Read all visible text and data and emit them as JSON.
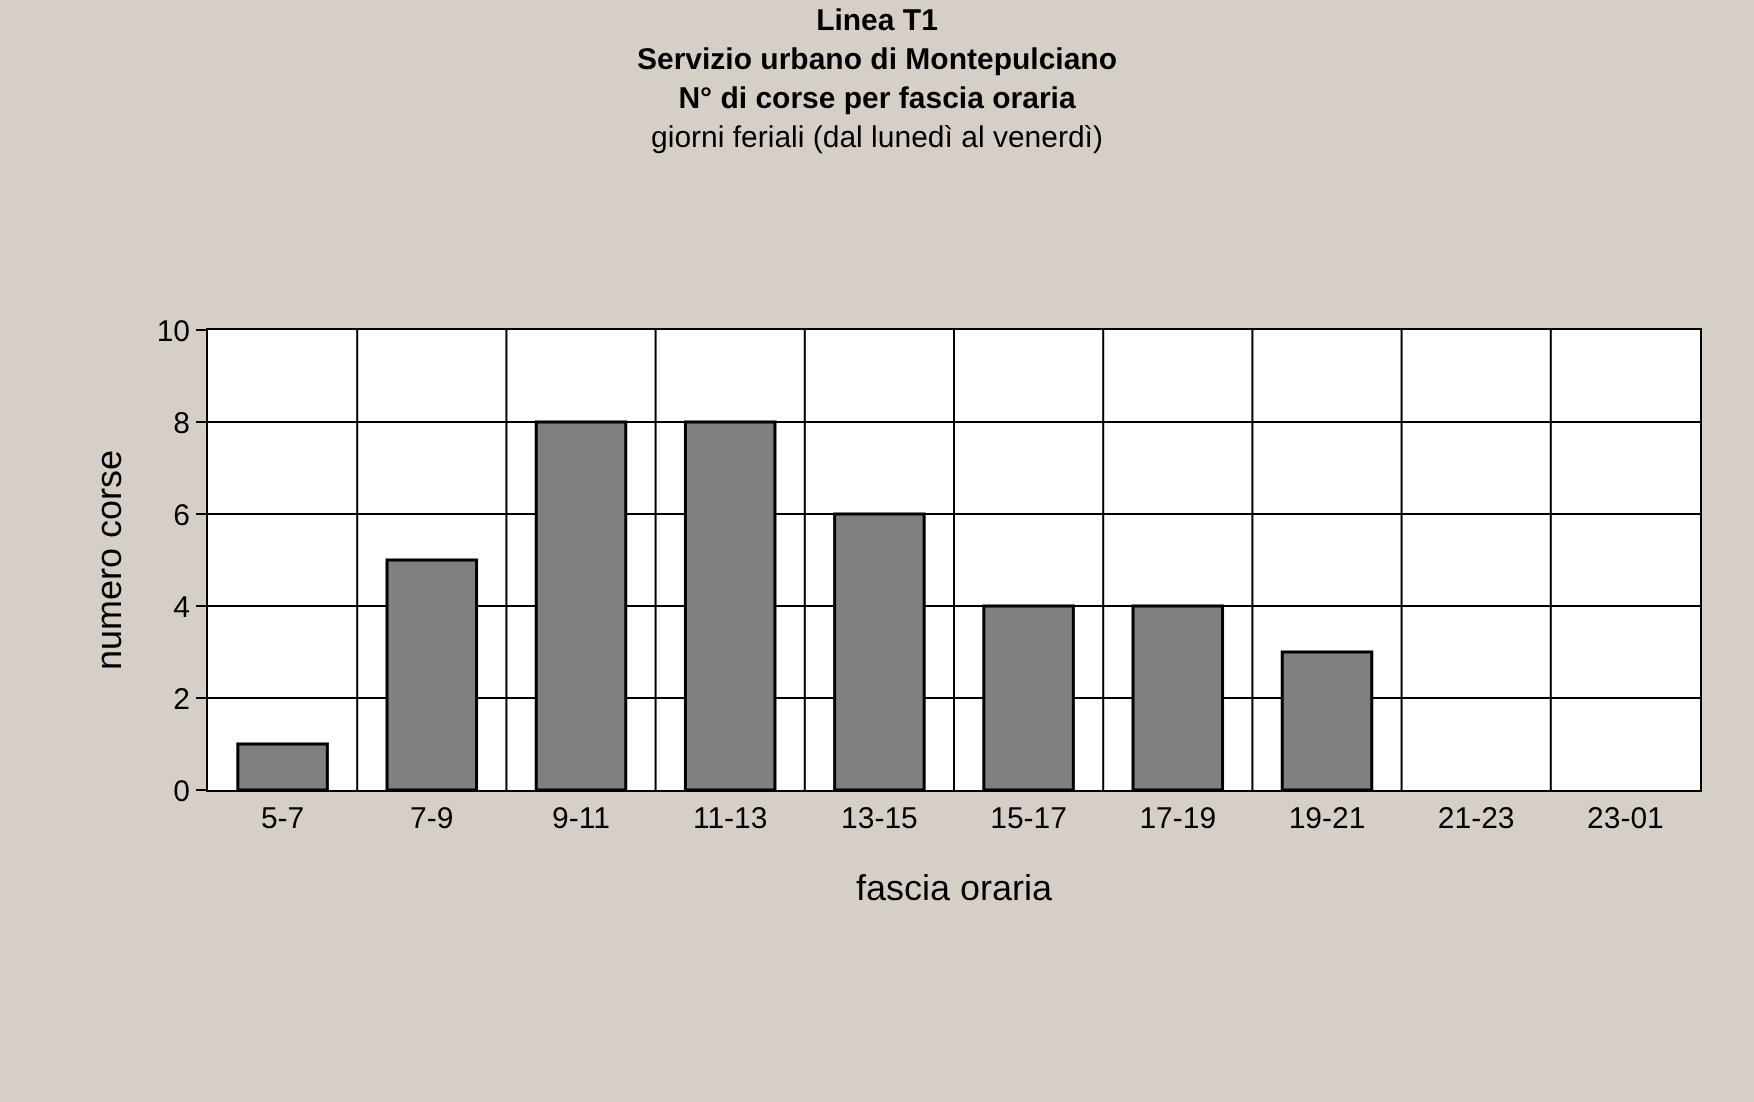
{
  "chart_data": {
    "type": "bar",
    "title": "Linea T1\nServizio urbano di Montepulciano\nN° di corse per fascia oraria",
    "subtitle": "giorni feriali (dal lunedì al venerdì)",
    "xlabel": "fascia oraria",
    "ylabel": "numero corse",
    "categories": [
      "5-7",
      "7-9",
      "9-11",
      "11-13",
      "13-15",
      "15-17",
      "17-19",
      "19-21",
      "21-23",
      "23-01"
    ],
    "values": [
      1,
      5,
      8,
      8,
      6,
      4,
      4,
      3,
      0,
      0
    ],
    "color": "#808080",
    "ylim": [
      0,
      10
    ],
    "yticks": [
      0,
      2,
      4,
      6,
      8,
      10
    ],
    "grid": true,
    "legend": false
  }
}
